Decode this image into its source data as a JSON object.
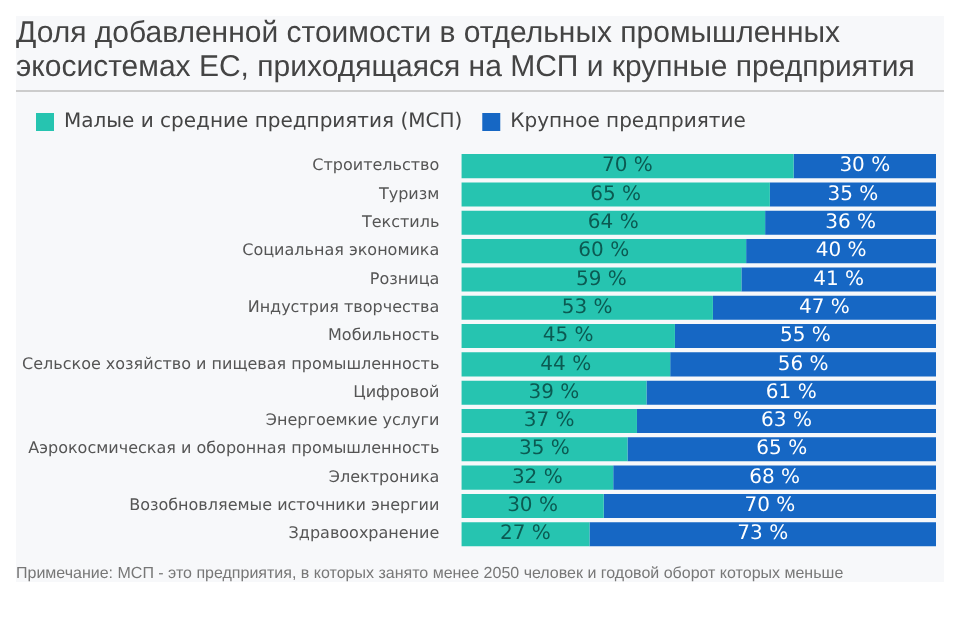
{
  "chart_data": {
    "type": "bar",
    "orientation": "horizontal",
    "stacked": true,
    "title": "Доля добавленной стоимости в отдельных промышленных экосистемах ЕС, приходящаяся на МСП и крупные предприятия",
    "categories": [
      "Строительство",
      "Туризм",
      "Текстиль",
      "Социальная экономика",
      "Розница",
      "Индустрия творчества",
      "Мобильность",
      "Сельское хозяйство и пищевая промышленность",
      "Цифровой",
      "Энергоемкие услуги",
      "Аэрокосмическая и оборонная промышленность",
      "Электроника",
      "Возобновляемые источники энергии",
      "Здравоохранение"
    ],
    "series": [
      {
        "name": "Малые и средние предприятия (МСП)",
        "color": "#26c4b0",
        "values": [
          70,
          65,
          64,
          60,
          59,
          53,
          45,
          44,
          39,
          37,
          35,
          32,
          30,
          27
        ],
        "value_labels": [
          "70 %",
          "65 %",
          "64 %",
          "60 %",
          "59 %",
          "53 %",
          "45 %",
          "44 %",
          "39 %",
          "37 %",
          "35 %",
          "32 %",
          "30 %",
          "27 %"
        ]
      },
      {
        "name": "Крупное предприятие",
        "color": "#1667c4",
        "values": [
          30,
          35,
          36,
          40,
          41,
          47,
          55,
          56,
          61,
          63,
          65,
          68,
          70,
          73
        ],
        "value_labels": [
          "30 %",
          "35 %",
          "36 %",
          "40 %",
          "41 %",
          "47 %",
          "55 %",
          "56 %",
          "61 %",
          "63 %",
          "65 %",
          "68 %",
          "70 %",
          "73 %"
        ]
      }
    ],
    "legend": "top left",
    "tick_labels": "y",
    "grid": false,
    "annotations": [
      "Примечание: МСП - это предприятия, в которых занято менее 2050 человек и годовой оборот которых меньше"
    ]
  }
}
